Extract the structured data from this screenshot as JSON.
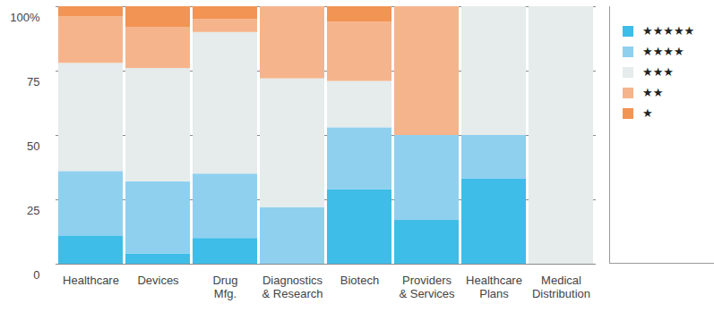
{
  "chart_data": {
    "type": "bar",
    "stacked": true,
    "grid": true,
    "legend": "right",
    "categories": [
      "Healthcare",
      "Devices",
      "Drug\nMfg.",
      "Diagnostics\n& Research",
      "Biotech",
      "Providers\n& Services",
      "Healthcare\nPlans",
      "Medical\nDistribution"
    ],
    "ylim": [
      0,
      100
    ],
    "yticks": [
      0,
      25,
      50,
      75,
      {
        "value": 100,
        "label": "100%"
      }
    ],
    "series": [
      {
        "name": "★★★★★",
        "color": "#3dbde8",
        "values": [
          11,
          4,
          10,
          0,
          29,
          17,
          33,
          0
        ]
      },
      {
        "name": "★★★★",
        "color": "#8fd0ef",
        "values": [
          25,
          28,
          25,
          22,
          24,
          33,
          17,
          0
        ]
      },
      {
        "name": "★★★",
        "color": "#e6ebeb",
        "values": [
          42,
          44,
          55,
          50,
          18,
          0,
          50,
          100
        ]
      },
      {
        "name": "★★",
        "color": "#f6b48c",
        "values": [
          18,
          16,
          5,
          28,
          23,
          50,
          0,
          0
        ]
      },
      {
        "name": "★",
        "color": "#f29454",
        "values": [
          4,
          8,
          5,
          0,
          6,
          0,
          0,
          0
        ]
      }
    ]
  }
}
